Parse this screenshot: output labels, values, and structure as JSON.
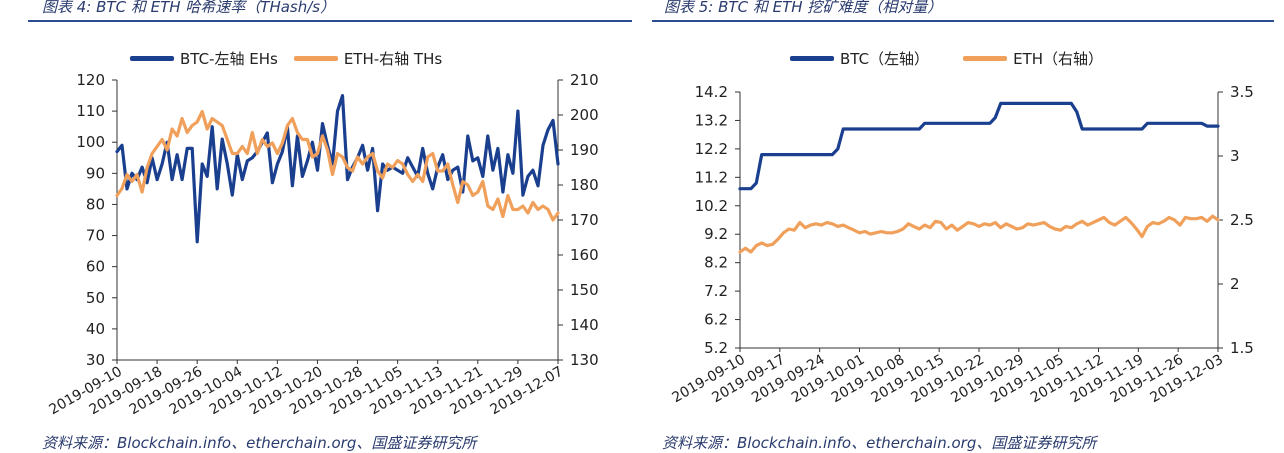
{
  "panels": [
    {
      "title": "图表 4:  BTC 和 ETH 哈希速率（THash/s）",
      "source": "资料来源：Blockchain.info、etherchain.org、国盛证券研究所"
    },
    {
      "title": "图表 5:  BTC 和 ETH 挖矿难度（相对量）",
      "source": "资料来源：Blockchain.info、etherchain.org、国盛证券研究所"
    }
  ],
  "colors": {
    "btc": "#1a3f8f",
    "eth": "#f0a05a"
  },
  "chart_data": [
    {
      "type": "line",
      "title": "BTC 和 ETH 哈希速率（THash/s）",
      "x_tick_labels": [
        "2019-09-10",
        "2019-09-18",
        "2019-09-26",
        "2019-10-04",
        "2019-10-12",
        "2019-10-20",
        "2019-10-28",
        "2019-11-05",
        "2019-11-13",
        "2019-11-21",
        "2019-11-29",
        "2019-12-07"
      ],
      "ylim_left": [
        30,
        120
      ],
      "yticks_left": [
        "30",
        "40",
        "50",
        "60",
        "70",
        "80",
        "90",
        "100",
        "110",
        "120"
      ],
      "ylim_right": [
        130,
        210
      ],
      "yticks_right": [
        "130",
        "140",
        "150",
        "160",
        "170",
        "180",
        "190",
        "200",
        "210"
      ],
      "n_points": 89,
      "series": [
        {
          "name": "BTC-左轴 EHs",
          "axis": "left",
          "values": [
            97,
            99,
            85,
            90,
            88,
            92,
            87,
            95,
            88,
            93,
            100,
            88,
            96,
            88,
            98,
            98,
            68,
            93,
            89,
            105,
            85,
            101,
            93,
            83,
            96,
            88,
            94,
            95,
            97,
            100,
            103,
            87,
            93,
            97,
            105,
            86,
            102,
            89,
            94,
            100,
            91,
            106,
            99,
            93,
            110,
            115,
            88,
            92,
            95,
            99,
            91,
            98,
            78,
            93,
            91,
            92,
            91,
            90,
            95,
            92,
            89,
            98,
            90,
            85,
            92,
            96,
            88,
            91,
            92,
            84,
            102,
            94,
            95,
            89,
            102,
            91,
            98,
            84,
            96,
            90,
            110,
            83,
            89,
            91,
            86,
            99,
            104,
            107,
            93
          ]
        },
        {
          "name": "ETH-右轴 THs",
          "axis": "right",
          "values": [
            177,
            179,
            183,
            181,
            183,
            178,
            185,
            189,
            191,
            193,
            190,
            196,
            194,
            199,
            195,
            197,
            198,
            201,
            196,
            199,
            198,
            197,
            193,
            189,
            189,
            191,
            189,
            195,
            189,
            193,
            191,
            192,
            189,
            192,
            197,
            199,
            195,
            193,
            193,
            188,
            189,
            194,
            190,
            183,
            189,
            188,
            185,
            184,
            188,
            186,
            188,
            189,
            184,
            182,
            186,
            185,
            187,
            186,
            183,
            181,
            183,
            181,
            188,
            189,
            184,
            184,
            186,
            180,
            175,
            181,
            180,
            177,
            178,
            181,
            174,
            173,
            176,
            171,
            177,
            173,
            173,
            174,
            172,
            175,
            173,
            174,
            173,
            170,
            172
          ]
        }
      ]
    },
    {
      "type": "line",
      "title": "BTC 和 ETH 挖矿难度（相对量）",
      "x_tick_labels": [
        "2019-09-10",
        "2019-09-17",
        "2019-09-24",
        "2019-10-01",
        "2019-10-08",
        "2019-10-15",
        "2019-10-22",
        "2019-10-29",
        "2019-11-05",
        "2019-11-12",
        "2019-11-19",
        "2019-11-26",
        "2019-12-03"
      ],
      "ylim_left": [
        5.2,
        14.2
      ],
      "yticks_left": [
        "5.2",
        "6.2",
        "7.2",
        "8.2",
        "9.2",
        "10.2",
        "11.2",
        "12.2",
        "13.2",
        "14.2"
      ],
      "ylim_right": [
        1.5,
        3.5
      ],
      "yticks_right": [
        "1.5",
        "2",
        "2.5",
        "3",
        "3.5"
      ],
      "n_points": 89,
      "series": [
        {
          "name": "BTC（左轴）",
          "axis": "left",
          "values": [
            10.8,
            10.8,
            10.8,
            11.0,
            12.0,
            12.0,
            12.0,
            12.0,
            12.0,
            12.0,
            12.0,
            12.0,
            12.0,
            12.0,
            12.0,
            12.0,
            12.0,
            12.0,
            12.2,
            12.9,
            12.9,
            12.9,
            12.9,
            12.9,
            12.9,
            12.9,
            12.9,
            12.9,
            12.9,
            12.9,
            12.9,
            12.9,
            12.9,
            12.9,
            13.1,
            13.1,
            13.1,
            13.1,
            13.1,
            13.1,
            13.1,
            13.1,
            13.1,
            13.1,
            13.1,
            13.1,
            13.1,
            13.3,
            13.8,
            13.8,
            13.8,
            13.8,
            13.8,
            13.8,
            13.8,
            13.8,
            13.8,
            13.8,
            13.8,
            13.8,
            13.8,
            13.8,
            13.5,
            12.9,
            12.9,
            12.9,
            12.9,
            12.9,
            12.9,
            12.9,
            12.9,
            12.9,
            12.9,
            12.9,
            12.9,
            13.1,
            13.1,
            13.1,
            13.1,
            13.1,
            13.1,
            13.1,
            13.1,
            13.1,
            13.1,
            13.1,
            13.0,
            13.0,
            13.0
          ]
        },
        {
          "name": "ETH（右轴）",
          "axis": "right",
          "values": [
            2.25,
            2.28,
            2.25,
            2.3,
            2.32,
            2.3,
            2.31,
            2.35,
            2.4,
            2.43,
            2.42,
            2.48,
            2.44,
            2.46,
            2.47,
            2.46,
            2.48,
            2.47,
            2.45,
            2.46,
            2.44,
            2.42,
            2.4,
            2.41,
            2.39,
            2.4,
            2.41,
            2.4,
            2.4,
            2.41,
            2.43,
            2.47,
            2.45,
            2.43,
            2.46,
            2.44,
            2.49,
            2.48,
            2.43,
            2.46,
            2.42,
            2.45,
            2.48,
            2.47,
            2.45,
            2.47,
            2.46,
            2.48,
            2.44,
            2.47,
            2.45,
            2.43,
            2.44,
            2.47,
            2.46,
            2.47,
            2.48,
            2.45,
            2.43,
            2.42,
            2.45,
            2.44,
            2.47,
            2.49,
            2.46,
            2.48,
            2.5,
            2.52,
            2.48,
            2.46,
            2.49,
            2.52,
            2.48,
            2.43,
            2.37,
            2.45,
            2.48,
            2.47,
            2.49,
            2.52,
            2.5,
            2.46,
            2.52,
            2.51,
            2.51,
            2.52,
            2.49,
            2.53,
            2.5
          ]
        }
      ]
    }
  ]
}
